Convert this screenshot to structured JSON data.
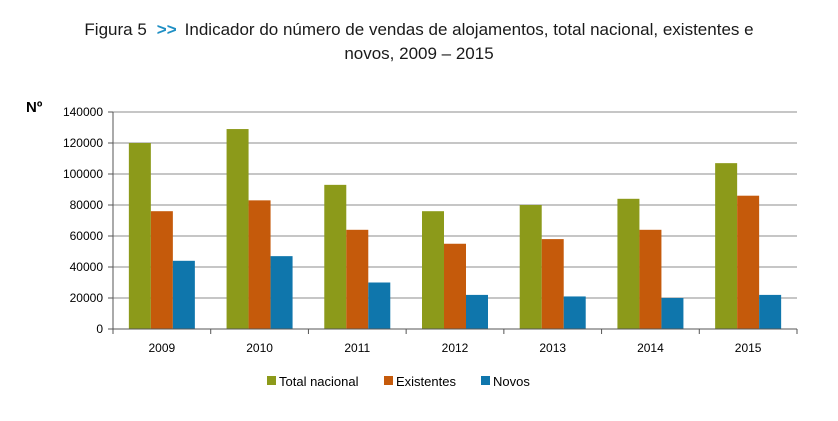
{
  "title": {
    "figure": "Figura 5",
    "arrow": ">>",
    "line1": "Indicador do número de vendas de alojamentos, total nacional, existentes e",
    "line2": "novos, 2009 – 2015"
  },
  "chart_data": {
    "type": "bar",
    "ylabel": "Nº",
    "xlabel": "",
    "ylim": [
      0,
      140000
    ],
    "yticks": [
      0,
      20000,
      40000,
      60000,
      80000,
      100000,
      120000,
      140000
    ],
    "ytick_labels": [
      "0",
      "20000",
      "40000",
      "60000",
      "80000",
      "100000",
      "120000",
      "140000"
    ],
    "categories": [
      "2009",
      "2010",
      "2011",
      "2012",
      "2013",
      "2014",
      "2015"
    ],
    "grid": true,
    "legend_position": "bottom",
    "series": [
      {
        "name": "Total nacional",
        "color": "#8c9a1a",
        "values": [
          120000,
          129000,
          93000,
          76000,
          80000,
          84000,
          107000
        ]
      },
      {
        "name": "Existentes",
        "color": "#c55a0b",
        "values": [
          76000,
          83000,
          64000,
          55000,
          58000,
          64000,
          86000
        ]
      },
      {
        "name": "Novos",
        "color": "#0f76ac",
        "values": [
          44000,
          47000,
          30000,
          22000,
          21000,
          20000,
          22000
        ]
      }
    ]
  }
}
